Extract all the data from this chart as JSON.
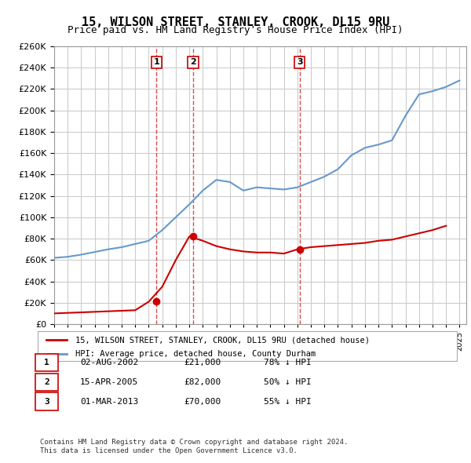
{
  "title": "15, WILSON STREET, STANLEY, CROOK, DL15 9RU",
  "subtitle": "Price paid vs. HM Land Registry's House Price Index (HPI)",
  "ylabel_ticks": [
    "£0",
    "£20K",
    "£40K",
    "£60K",
    "£80K",
    "£100K",
    "£120K",
    "£140K",
    "£160K",
    "£180K",
    "£200K",
    "£220K",
    "£240K",
    "£260K"
  ],
  "ylim": [
    0,
    260000
  ],
  "xlim_start": 1995.0,
  "xlim_end": 2025.5,
  "legend_label_red": "15, WILSON STREET, STANLEY, CROOK, DL15 9RU (detached house)",
  "legend_label_blue": "HPI: Average price, detached house, County Durham",
  "sale1_date": "02-AUG-2002",
  "sale1_price": "£21,000",
  "sale1_pct": "78% ↓ HPI",
  "sale2_date": "15-APR-2005",
  "sale2_price": "£82,000",
  "sale2_pct": "50% ↓ HPI",
  "sale3_date": "01-MAR-2013",
  "sale3_price": "£70,000",
  "sale3_pct": "55% ↓ HPI",
  "footer1": "Contains HM Land Registry data © Crown copyright and database right 2024.",
  "footer2": "This data is licensed under the Open Government Licence v3.0.",
  "red_color": "#cc0000",
  "blue_color": "#6699cc",
  "sale_marker_color": "#cc0000",
  "hpi_years": [
    1995,
    1996,
    1997,
    1998,
    1999,
    2000,
    2001,
    2002,
    2003,
    2004,
    2005,
    2006,
    2007,
    2008,
    2009,
    2010,
    2011,
    2012,
    2013,
    2014,
    2015,
    2016,
    2017,
    2018,
    2019,
    2020,
    2021,
    2022,
    2023,
    2024,
    2025
  ],
  "hpi_values": [
    62000,
    63000,
    65000,
    67500,
    70000,
    72000,
    75000,
    78000,
    88000,
    100000,
    112000,
    125000,
    135000,
    133000,
    125000,
    128000,
    127000,
    126000,
    128000,
    133000,
    138000,
    145000,
    158000,
    165000,
    168000,
    172000,
    195000,
    215000,
    218000,
    222000,
    228000
  ],
  "red_years_early": [
    1995,
    1996,
    1997,
    1998,
    1999,
    2000,
    2001,
    2002
  ],
  "red_values_early": [
    10000,
    10500,
    11000,
    11500,
    12000,
    12500,
    13000,
    21000
  ],
  "red_years_mid": [
    2002,
    2003,
    2004,
    2005
  ],
  "red_values_mid": [
    21000,
    35000,
    60000,
    82000
  ],
  "red_years_late": [
    2005,
    2006,
    2007,
    2008,
    2009,
    2010,
    2011,
    2012,
    2013
  ],
  "red_values_late": [
    82000,
    78000,
    73000,
    70000,
    68000,
    67000,
    67000,
    66000,
    70000
  ],
  "red_years_post": [
    2013,
    2014,
    2015,
    2016,
    2017,
    2018,
    2019,
    2020,
    2021,
    2022,
    2023,
    2024
  ],
  "red_values_post": [
    70000,
    72000,
    73000,
    74000,
    75000,
    76000,
    78000,
    79000,
    82000,
    85000,
    88000,
    92000
  ],
  "sale1_x": 2002.58,
  "sale1_y": 21000,
  "sale2_x": 2005.29,
  "sale2_y": 82000,
  "sale3_x": 2013.17,
  "sale3_y": 70000,
  "vline1_x": 2002.58,
  "vline2_x": 2005.29,
  "vline3_x": 2013.17
}
